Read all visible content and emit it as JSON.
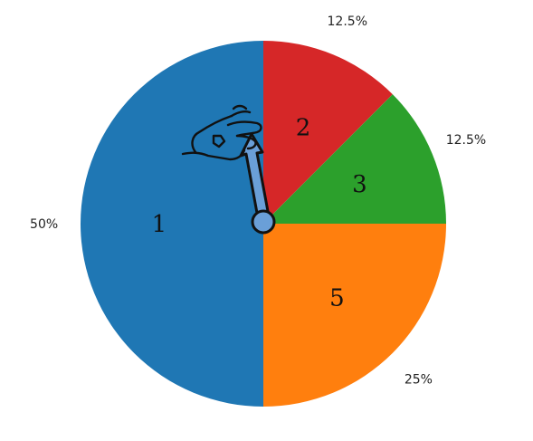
{
  "chart_data": {
    "type": "pie",
    "categories": [
      "1",
      "2",
      "3",
      "5"
    ],
    "values": [
      50,
      12.5,
      12.5,
      25
    ],
    "percent_labels": [
      "50%",
      "12.5%",
      "12.5%",
      "25%"
    ],
    "colors": [
      "#1f77b4",
      "#d62728",
      "#2ca02c",
      "#ff7f0e"
    ],
    "title": "",
    "legend": "none",
    "start": "top",
    "direction": "clockwise, 1 counter-clockwise from top"
  },
  "overlay": {
    "hand_icon": "hand-pinch-icon",
    "pointer_icon": "arrow-pointer-icon",
    "pointer_color": "#6a9fd8"
  }
}
